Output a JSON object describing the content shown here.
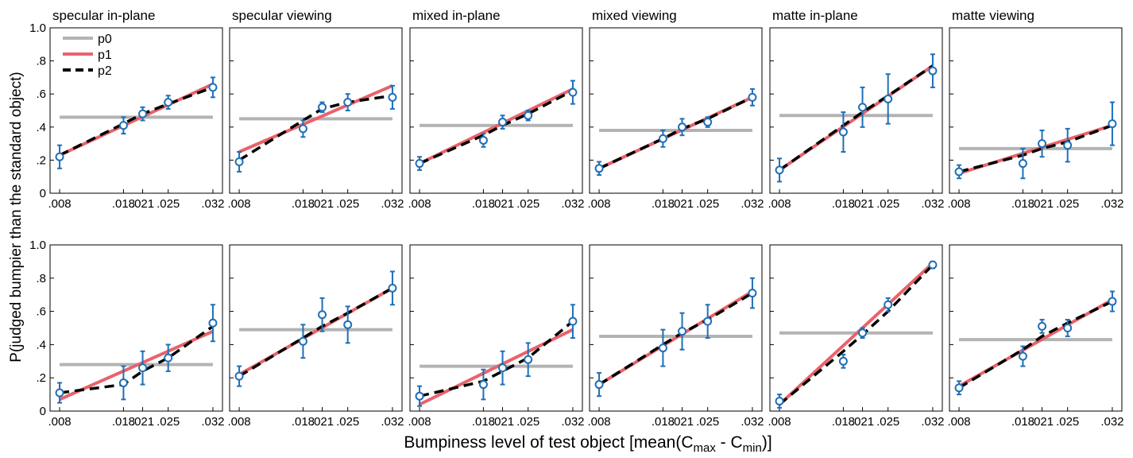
{
  "figure": {
    "ylabel": "P(judged bumpier than the standard object)",
    "xlabel_parts": [
      "Bumpiness level of test object [mean(C",
      "max",
      " - C",
      "min",
      ")]"
    ],
    "legend": [
      {
        "name": "p0",
        "color": "#b3b3b3",
        "dash": "solid"
      },
      {
        "name": "p1",
        "color": "#e8636b",
        "dash": "solid"
      },
      {
        "name": "p2",
        "color": "#000000",
        "dash": "dashed"
      }
    ],
    "colors": {
      "data": "#1f6fb6",
      "axis": "#000000"
    },
    "x_ticks": [
      0.008,
      0.018,
      0.021,
      0.025,
      0.032
    ],
    "x_tick_labels": [
      ".008",
      ".018",
      ".021",
      ".025",
      ".032"
    ],
    "y_ticks": [
      0,
      0.2,
      0.4,
      0.6,
      0.8,
      1.0
    ],
    "y_tick_labels": [
      "0",
      ".2",
      ".4",
      ".6",
      ".8",
      "1.0"
    ]
  },
  "chart_data": [
    {
      "type": "line",
      "title": "specular in-plane",
      "x": [
        0.008,
        0.018,
        0.021,
        0.025,
        0.032
      ],
      "ylim": [
        0,
        1
      ],
      "values": [
        0.22,
        0.41,
        0.48,
        0.55,
        0.64
      ],
      "err": [
        0.07,
        0.05,
        0.04,
        0.04,
        0.06
      ],
      "p0": 0.46,
      "p1": [
        0.23,
        0.66
      ],
      "p2": [
        0.23,
        0.42,
        0.48,
        0.54,
        0.64
      ]
    },
    {
      "type": "line",
      "title": "specular viewing",
      "x": [
        0.008,
        0.018,
        0.021,
        0.025,
        0.032
      ],
      "ylim": [
        0,
        1
      ],
      "values": [
        0.19,
        0.39,
        0.52,
        0.55,
        0.58
      ],
      "err": [
        0.06,
        0.05,
        0.03,
        0.05,
        0.07
      ],
      "p0": 0.45,
      "p1": [
        0.25,
        0.65
      ],
      "p2": [
        0.2,
        0.44,
        0.51,
        0.55,
        0.59
      ]
    },
    {
      "type": "line",
      "title": "mixed in-plane",
      "x": [
        0.008,
        0.018,
        0.021,
        0.025,
        0.032
      ],
      "ylim": [
        0,
        1
      ],
      "values": [
        0.18,
        0.32,
        0.43,
        0.47,
        0.61
      ],
      "err": [
        0.04,
        0.04,
        0.04,
        0.03,
        0.07
      ],
      "p0": 0.41,
      "p1": [
        0.18,
        0.63
      ],
      "p2": [
        0.18,
        0.35,
        0.41,
        0.48,
        0.62
      ]
    },
    {
      "type": "line",
      "title": "mixed viewing",
      "x": [
        0.008,
        0.018,
        0.021,
        0.025,
        0.032
      ],
      "ylim": [
        0,
        1
      ],
      "values": [
        0.15,
        0.33,
        0.4,
        0.43,
        0.58
      ],
      "err": [
        0.04,
        0.05,
        0.05,
        0.03,
        0.05
      ],
      "p0": 0.38,
      "p1": [
        0.15,
        0.58
      ],
      "p2": [
        0.15,
        0.33,
        0.39,
        0.45,
        0.58
      ]
    },
    {
      "type": "line",
      "title": "matte in-plane",
      "x": [
        0.008,
        0.018,
        0.021,
        0.025,
        0.032
      ],
      "ylim": [
        0,
        1
      ],
      "values": [
        0.14,
        0.37,
        0.52,
        0.57,
        0.74
      ],
      "err": [
        0.07,
        0.12,
        0.12,
        0.15,
        0.1
      ],
      "p0": 0.47,
      "p1": [
        0.14,
        0.77
      ],
      "p2": [
        0.14,
        0.41,
        0.49,
        0.59,
        0.77
      ]
    },
    {
      "type": "line",
      "title": "matte viewing",
      "x": [
        0.008,
        0.018,
        0.021,
        0.025,
        0.032
      ],
      "ylim": [
        0,
        1
      ],
      "values": [
        0.13,
        0.18,
        0.3,
        0.29,
        0.42
      ],
      "err": [
        0.04,
        0.09,
        0.08,
        0.1,
        0.13
      ],
      "p0": 0.27,
      "p1": [
        0.12,
        0.41
      ],
      "p2": [
        0.13,
        0.23,
        0.27,
        0.31,
        0.41
      ]
    },
    {
      "type": "line",
      "title": "",
      "x": [
        0.008,
        0.018,
        0.021,
        0.025,
        0.032
      ],
      "ylim": [
        0,
        1
      ],
      "values": [
        0.11,
        0.17,
        0.26,
        0.32,
        0.53
      ],
      "err": [
        0.06,
        0.1,
        0.1,
        0.08,
        0.11
      ],
      "p0": 0.28,
      "p1": [
        0.07,
        0.48
      ],
      "p2": [
        0.11,
        0.16,
        0.24,
        0.32,
        0.51
      ]
    },
    {
      "type": "line",
      "title": "",
      "x": [
        0.008,
        0.018,
        0.021,
        0.025,
        0.032
      ],
      "ylim": [
        0,
        1
      ],
      "values": [
        0.21,
        0.42,
        0.58,
        0.52,
        0.74
      ],
      "err": [
        0.06,
        0.1,
        0.1,
        0.11,
        0.1
      ],
      "p0": 0.49,
      "p1": [
        0.22,
        0.74
      ],
      "p2": [
        0.21,
        0.44,
        0.51,
        0.59,
        0.74
      ]
    },
    {
      "type": "line",
      "title": "",
      "x": [
        0.008,
        0.018,
        0.021,
        0.025,
        0.032
      ],
      "ylim": [
        0,
        1
      ],
      "values": [
        0.09,
        0.16,
        0.26,
        0.31,
        0.54
      ],
      "err": [
        0.06,
        0.09,
        0.1,
        0.1,
        0.1
      ],
      "p0": 0.27,
      "p1": [
        0.04,
        0.49
      ],
      "p2": [
        0.09,
        0.18,
        0.24,
        0.32,
        0.54
      ]
    },
    {
      "type": "line",
      "title": "",
      "x": [
        0.008,
        0.018,
        0.021,
        0.025,
        0.032
      ],
      "ylim": [
        0,
        1
      ],
      "values": [
        0.16,
        0.38,
        0.48,
        0.54,
        0.71
      ],
      "err": [
        0.07,
        0.11,
        0.11,
        0.1,
        0.09
      ],
      "p0": 0.45,
      "p1": [
        0.16,
        0.72
      ],
      "p2": [
        0.16,
        0.4,
        0.47,
        0.55,
        0.71
      ]
    },
    {
      "type": "line",
      "title": "",
      "x": [
        0.008,
        0.018,
        0.021,
        0.025,
        0.032
      ],
      "ylim": [
        0,
        1
      ],
      "values": [
        0.06,
        0.3,
        0.47,
        0.64,
        0.88
      ],
      "err": [
        0.04,
        0.04,
        0.03,
        0.04,
        0.02
      ],
      "p0": 0.47,
      "p1": [
        0.04,
        0.89
      ],
      "p2": [
        0.04,
        0.36,
        0.46,
        0.6,
        0.88
      ]
    },
    {
      "type": "line",
      "title": "",
      "x": [
        0.008,
        0.018,
        0.021,
        0.025,
        0.032
      ],
      "ylim": [
        0,
        1
      ],
      "values": [
        0.14,
        0.33,
        0.51,
        0.5,
        0.66
      ],
      "err": [
        0.04,
        0.06,
        0.04,
        0.05,
        0.06
      ],
      "p0": 0.43,
      "p1": [
        0.15,
        0.67
      ],
      "p2": [
        0.14,
        0.37,
        0.45,
        0.53,
        0.66
      ]
    }
  ]
}
